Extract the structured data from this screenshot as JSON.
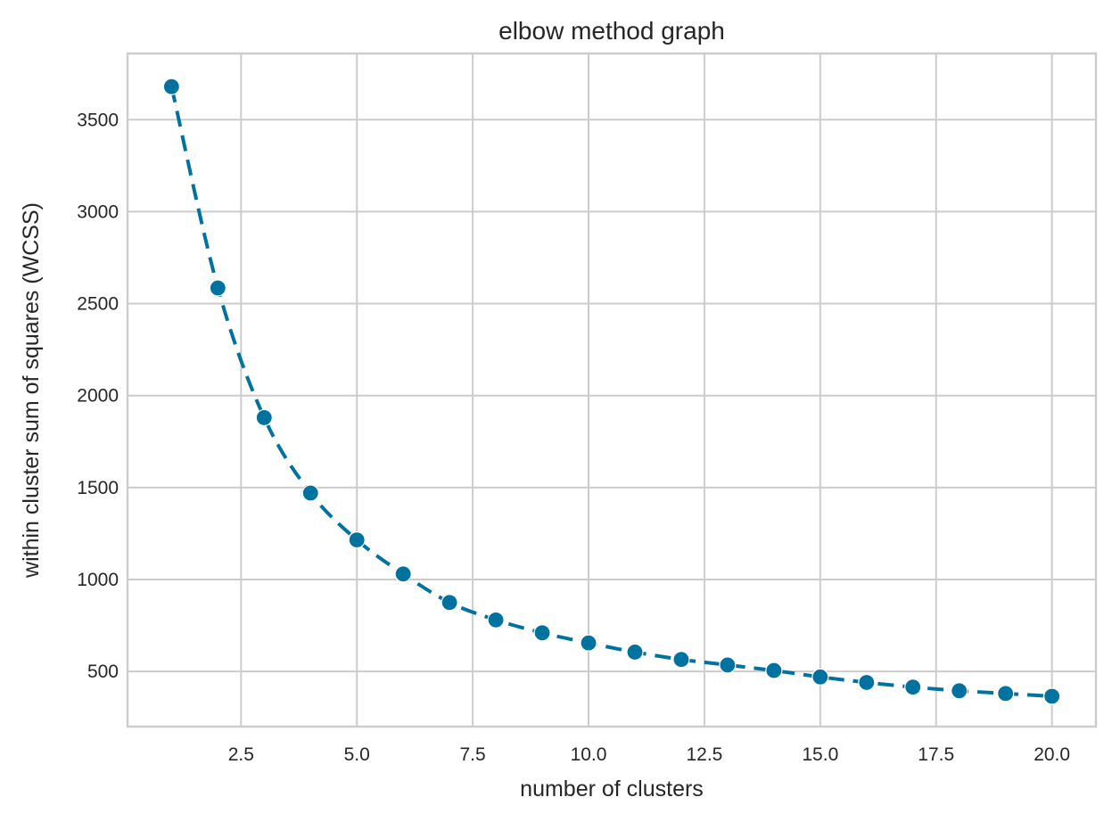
{
  "chart_data": {
    "type": "line",
    "title": "elbow method graph",
    "xlabel": "number of clusters",
    "ylabel": "within cluster sum of squares (WCSS)",
    "xlim": [
      0.05,
      20.95
    ],
    "ylim": [
      200,
      3860
    ],
    "xticks": [
      2.5,
      5.0,
      7.5,
      10.0,
      12.5,
      15.0,
      17.5,
      20.0
    ],
    "xtick_labels": [
      "2.5",
      "5.0",
      "7.5",
      "10.0",
      "12.5",
      "15.0",
      "17.5",
      "20.0"
    ],
    "yticks": [
      500,
      1000,
      1500,
      2000,
      2500,
      3000,
      3500
    ],
    "ytick_labels": [
      "500",
      "1000",
      "1500",
      "2000",
      "2500",
      "3000",
      "3500"
    ],
    "grid": true,
    "line_style": "dashed",
    "marker": "circle",
    "color": "#0072a0",
    "series": [
      {
        "x": [
          1,
          2,
          3,
          4,
          5,
          6,
          7,
          8,
          9,
          10,
          11,
          12,
          13,
          14,
          15,
          16,
          17,
          18,
          19,
          20
        ],
        "values": [
          3680,
          2585,
          1880,
          1470,
          1215,
          1030,
          875,
          780,
          710,
          655,
          605,
          565,
          535,
          505,
          470,
          440,
          415,
          395,
          380,
          365
        ]
      }
    ]
  }
}
